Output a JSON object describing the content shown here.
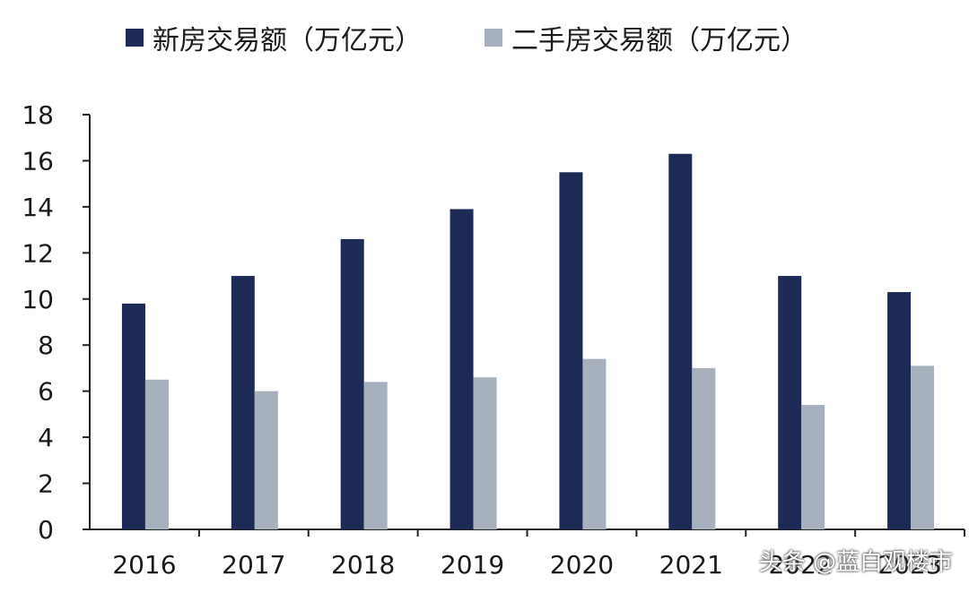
{
  "chart_data": {
    "type": "bar",
    "categories": [
      "2016",
      "2017",
      "2018",
      "2019",
      "2020",
      "2021",
      "2022",
      "2023"
    ],
    "series": [
      {
        "name": "新房交易额（万亿元）",
        "values": [
          9.8,
          11.0,
          12.6,
          13.9,
          15.5,
          16.3,
          11.0,
          10.3
        ],
        "color": "#1c2a55"
      },
      {
        "name": "二手房交易额（万亿元）",
        "values": [
          6.5,
          6.0,
          6.4,
          6.6,
          7.4,
          7.0,
          5.4,
          7.1
        ],
        "color": "#a7b0bd"
      }
    ],
    "ylim": [
      0,
      18
    ],
    "yticks": [
      0,
      2,
      4,
      6,
      8,
      10,
      12,
      14,
      16,
      18
    ],
    "legend_position": "top",
    "grid": false
  },
  "watermark": "头条 @蓝白观楼市"
}
